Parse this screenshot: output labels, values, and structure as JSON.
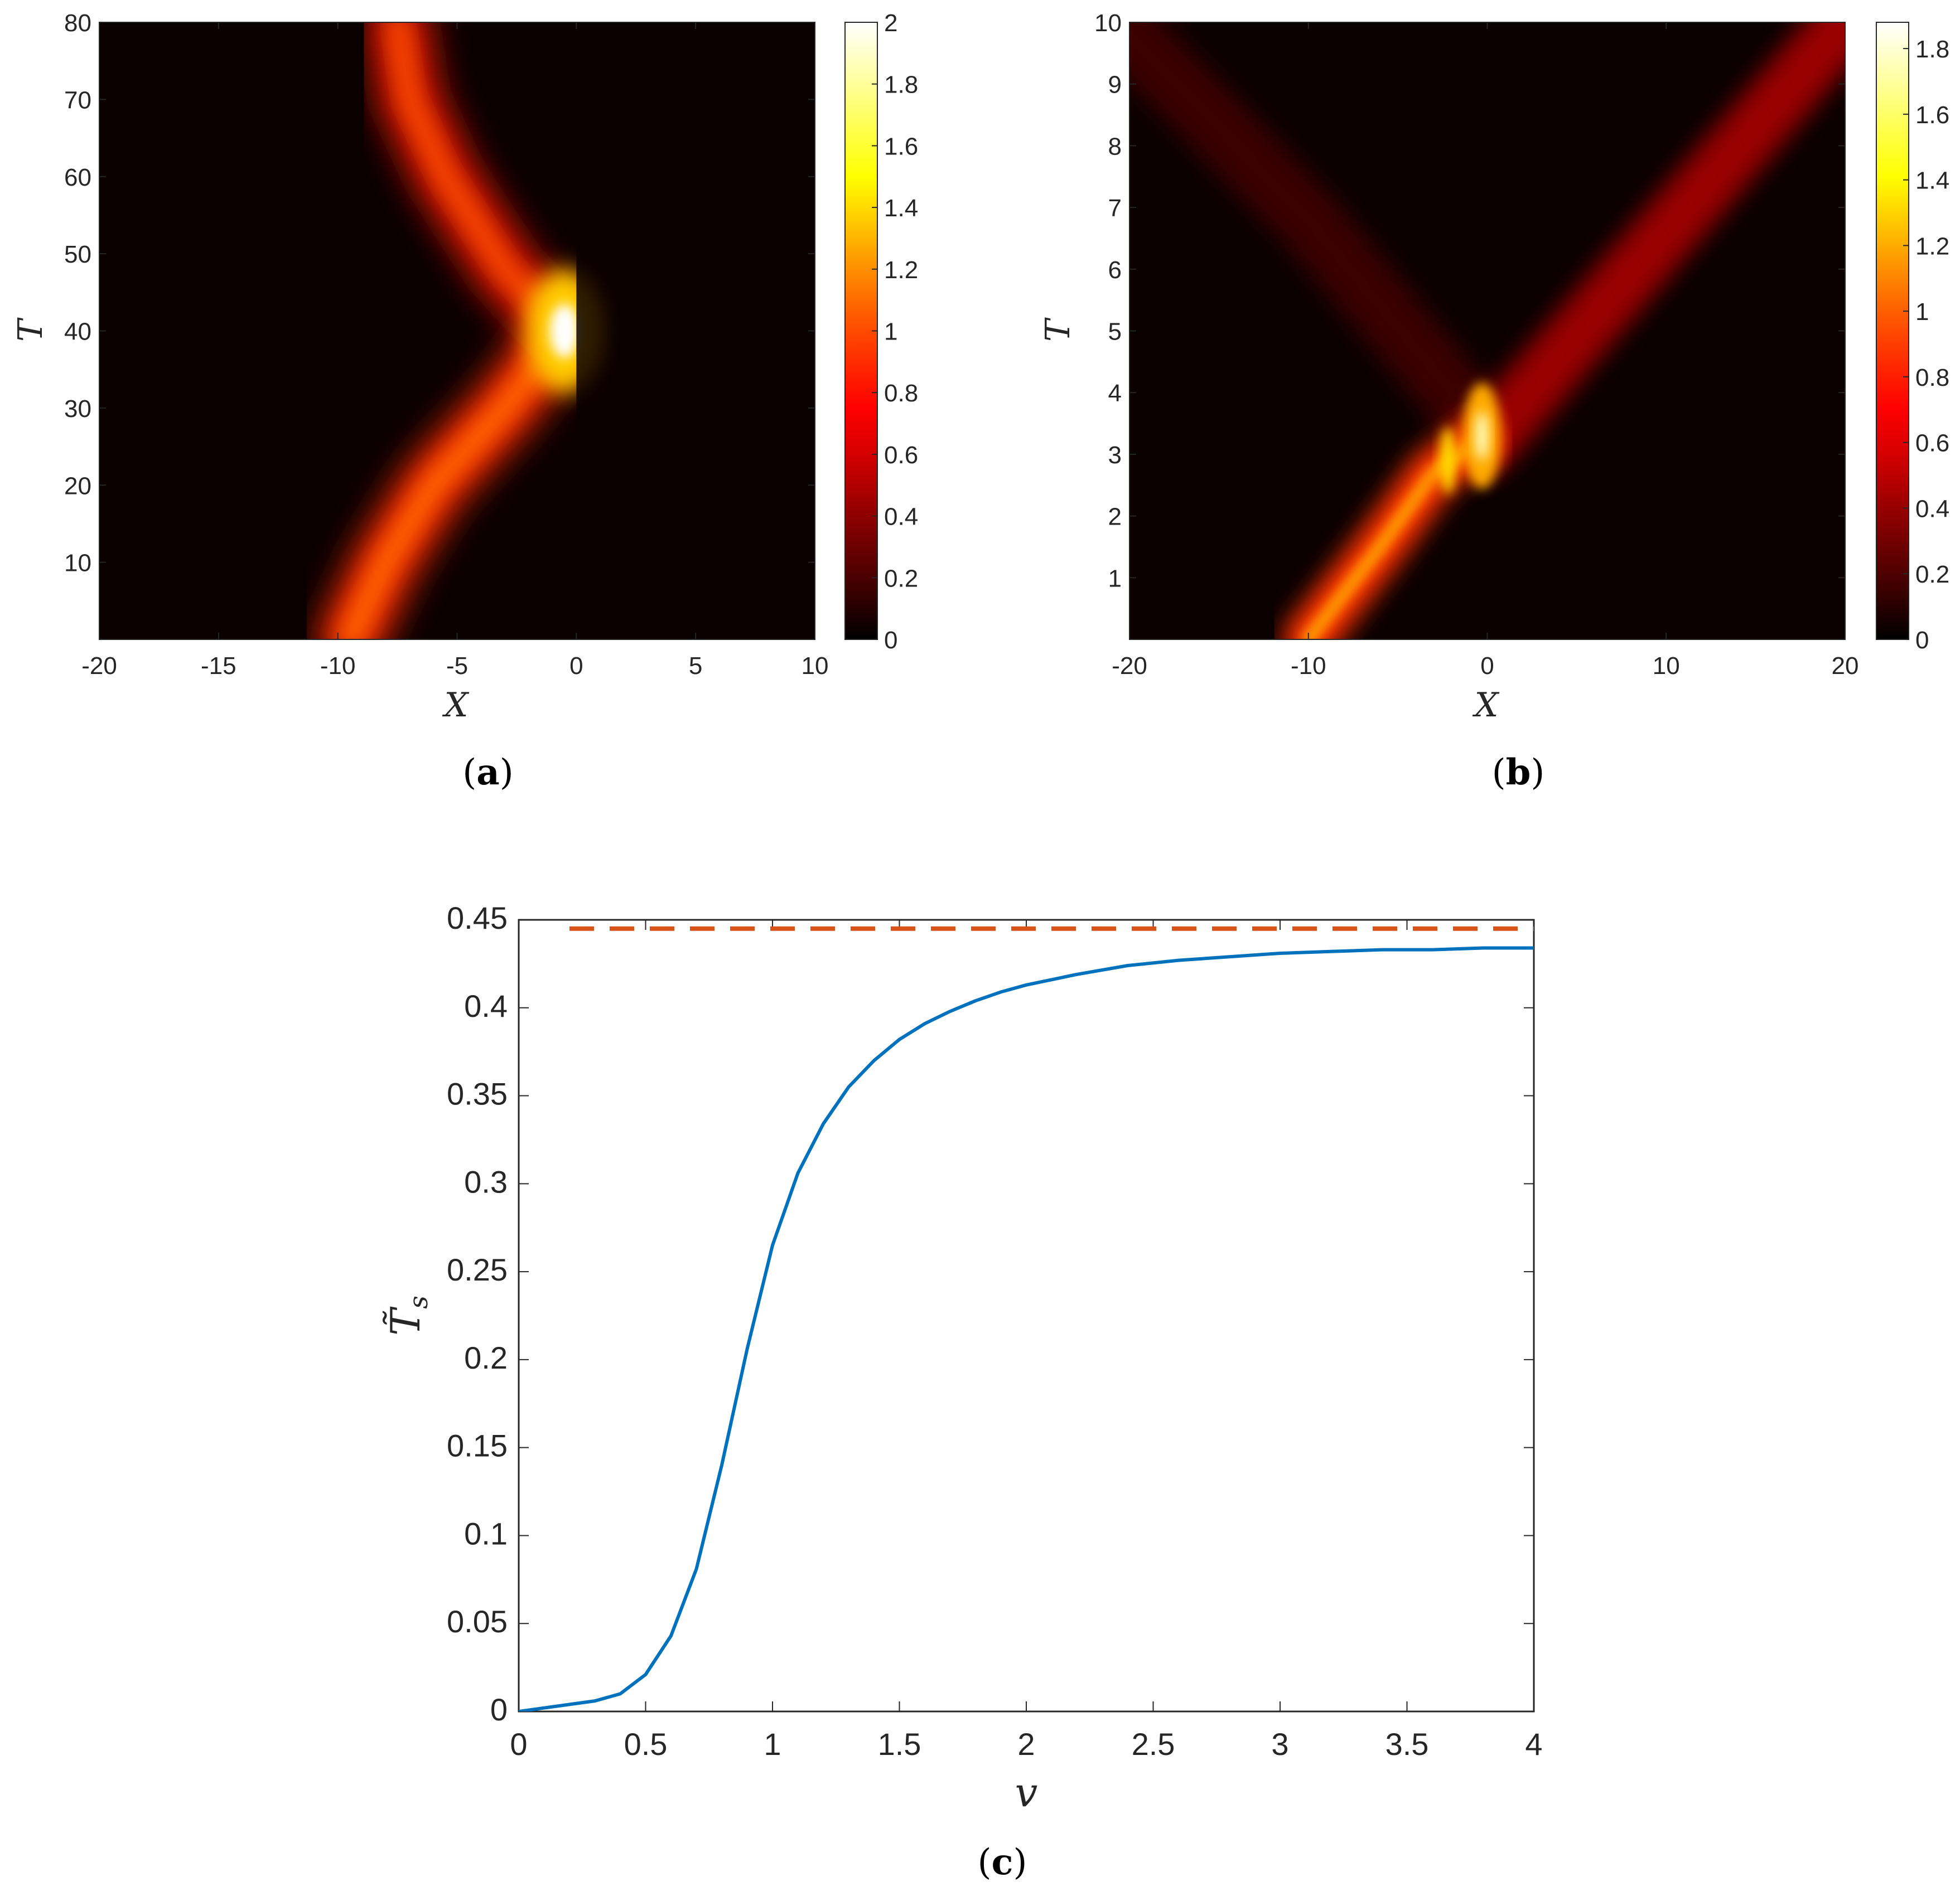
{
  "colors": {
    "curve": "#0072BD",
    "dashed": "#D95319",
    "axis": "#262626",
    "colormap": "hot"
  },
  "chart_data": [
    {
      "panel": "(a)",
      "caption_letter": "a",
      "type": "heatmap",
      "title": "",
      "xlabel": "X",
      "ylabel": "T",
      "xlim": [
        -20,
        10
      ],
      "ylim": [
        0,
        80
      ],
      "xticks": [
        "-20",
        "-15",
        "-10",
        "-5",
        "0",
        "5",
        "10"
      ],
      "xtick_values": [
        -20,
        -15,
        -10,
        -5,
        0,
        5,
        10
      ],
      "yticks": [
        "10",
        "20",
        "30",
        "40",
        "50",
        "60",
        "70",
        "80"
      ],
      "ytick_values": [
        10,
        20,
        30,
        40,
        50,
        60,
        70,
        80
      ],
      "colorbar": {
        "range": [
          0,
          2
        ],
        "ticks": [
          "0",
          "0.2",
          "0.4",
          "0.6",
          "0.8",
          "1",
          "1.2",
          "1.4",
          "1.6",
          "1.8",
          "2"
        ],
        "tick_values": [
          0,
          0.2,
          0.4,
          0.6,
          0.8,
          1,
          1.2,
          1.4,
          1.6,
          1.8,
          2
        ]
      },
      "features": {
        "incoming_path": [
          [
            -9.5,
            0
          ],
          [
            -8,
            10
          ],
          [
            -6,
            20
          ],
          [
            -3,
            30
          ],
          [
            -0.5,
            40
          ]
        ],
        "reflected_path": [
          [
            -0.5,
            40
          ],
          [
            -3,
            48
          ],
          [
            -5.5,
            60
          ],
          [
            -7,
            70
          ],
          [
            -7.5,
            80
          ]
        ],
        "peak": {
          "x": -0.5,
          "t": 40,
          "value": 2.0
        },
        "incoming_amplitude": 0.85,
        "reflected_amplitude": 0.75,
        "transmitted_amplitude": 0.08
      }
    },
    {
      "panel": "(b)",
      "caption_letter": "b",
      "type": "heatmap",
      "title": "",
      "xlabel": "X",
      "ylabel": "T",
      "xlim": [
        -20,
        20
      ],
      "ylim": [
        0,
        10
      ],
      "xticks": [
        "-20",
        "-10",
        "0",
        "10",
        "20"
      ],
      "xtick_values": [
        -20,
        -10,
        0,
        10,
        20
      ],
      "yticks": [
        "1",
        "2",
        "3",
        "4",
        "5",
        "6",
        "7",
        "8",
        "9",
        "10"
      ],
      "ytick_values": [
        1,
        2,
        3,
        4,
        5,
        6,
        7,
        8,
        9,
        10
      ],
      "colorbar": {
        "range": [
          0,
          1.88
        ],
        "ticks": [
          "0",
          "0.2",
          "0.4",
          "0.6",
          "0.8",
          "1",
          "1.2",
          "1.4",
          "1.6",
          "1.8"
        ],
        "tick_values": [
          0,
          0.2,
          0.4,
          0.6,
          0.8,
          1,
          1.2,
          1.4,
          1.6,
          1.8
        ]
      },
      "features": {
        "incoming_path": [
          [
            -10,
            0
          ],
          [
            -6,
            1.5
          ],
          [
            -3,
            2.7
          ],
          [
            -0.5,
            3.2
          ]
        ],
        "transmitted_path": [
          [
            0,
            3.2
          ],
          [
            10,
            6.6
          ],
          [
            20,
            10
          ]
        ],
        "reflected_path": [
          [
            -0.5,
            3.5
          ],
          [
            -10,
            6.8
          ],
          [
            -20,
            9.8
          ]
        ],
        "peak": {
          "x": -0.3,
          "t": 3.3,
          "value": 1.85
        },
        "incoming_amplitude": 1.0,
        "transmitted_amplitude": 0.42,
        "reflected_amplitude": 0.12
      }
    },
    {
      "panel": "(c)",
      "caption_letter": "c",
      "type": "line",
      "title": "",
      "xlabel": "v",
      "ylabel": "T̃s",
      "ylabel_main": "T̃",
      "ylabel_sub": "s",
      "xlim": [
        0,
        4
      ],
      "ylim": [
        0,
        0.45
      ],
      "grid": false,
      "xticks": [
        "0",
        "0.5",
        "1",
        "1.5",
        "2",
        "2.5",
        "3",
        "3.5",
        "4"
      ],
      "xtick_values": [
        0,
        0.5,
        1,
        1.5,
        2,
        2.5,
        3,
        3.5,
        4
      ],
      "yticks": [
        "0",
        "0.05",
        "0.1",
        "0.15",
        "0.2",
        "0.25",
        "0.3",
        "0.35",
        "0.4",
        "0.45"
      ],
      "ytick_values": [
        0,
        0.05,
        0.1,
        0.15,
        0.2,
        0.25,
        0.3,
        0.35,
        0.4,
        0.45
      ],
      "series": [
        {
          "name": "T̃s(v)",
          "style": "solid",
          "x": [
            0,
            0.1,
            0.2,
            0.3,
            0.4,
            0.5,
            0.6,
            0.7,
            0.8,
            0.9,
            1.0,
            1.1,
            1.2,
            1.3,
            1.4,
            1.5,
            1.6,
            1.7,
            1.8,
            1.9,
            2.0,
            2.2,
            2.4,
            2.6,
            2.8,
            3.0,
            3.2,
            3.4,
            3.6,
            3.8,
            4.0
          ],
          "y": [
            0,
            0.002,
            0.004,
            0.006,
            0.01,
            0.021,
            0.043,
            0.081,
            0.14,
            0.206,
            0.265,
            0.306,
            0.334,
            0.355,
            0.37,
            0.382,
            0.391,
            0.398,
            0.404,
            0.409,
            0.413,
            0.419,
            0.424,
            0.427,
            0.429,
            0.431,
            0.432,
            0.433,
            0.433,
            0.434,
            0.434
          ]
        },
        {
          "name": "limit",
          "style": "dashed",
          "x": [
            0.2,
            4.0
          ],
          "y": [
            0.445,
            0.445
          ]
        }
      ]
    }
  ]
}
